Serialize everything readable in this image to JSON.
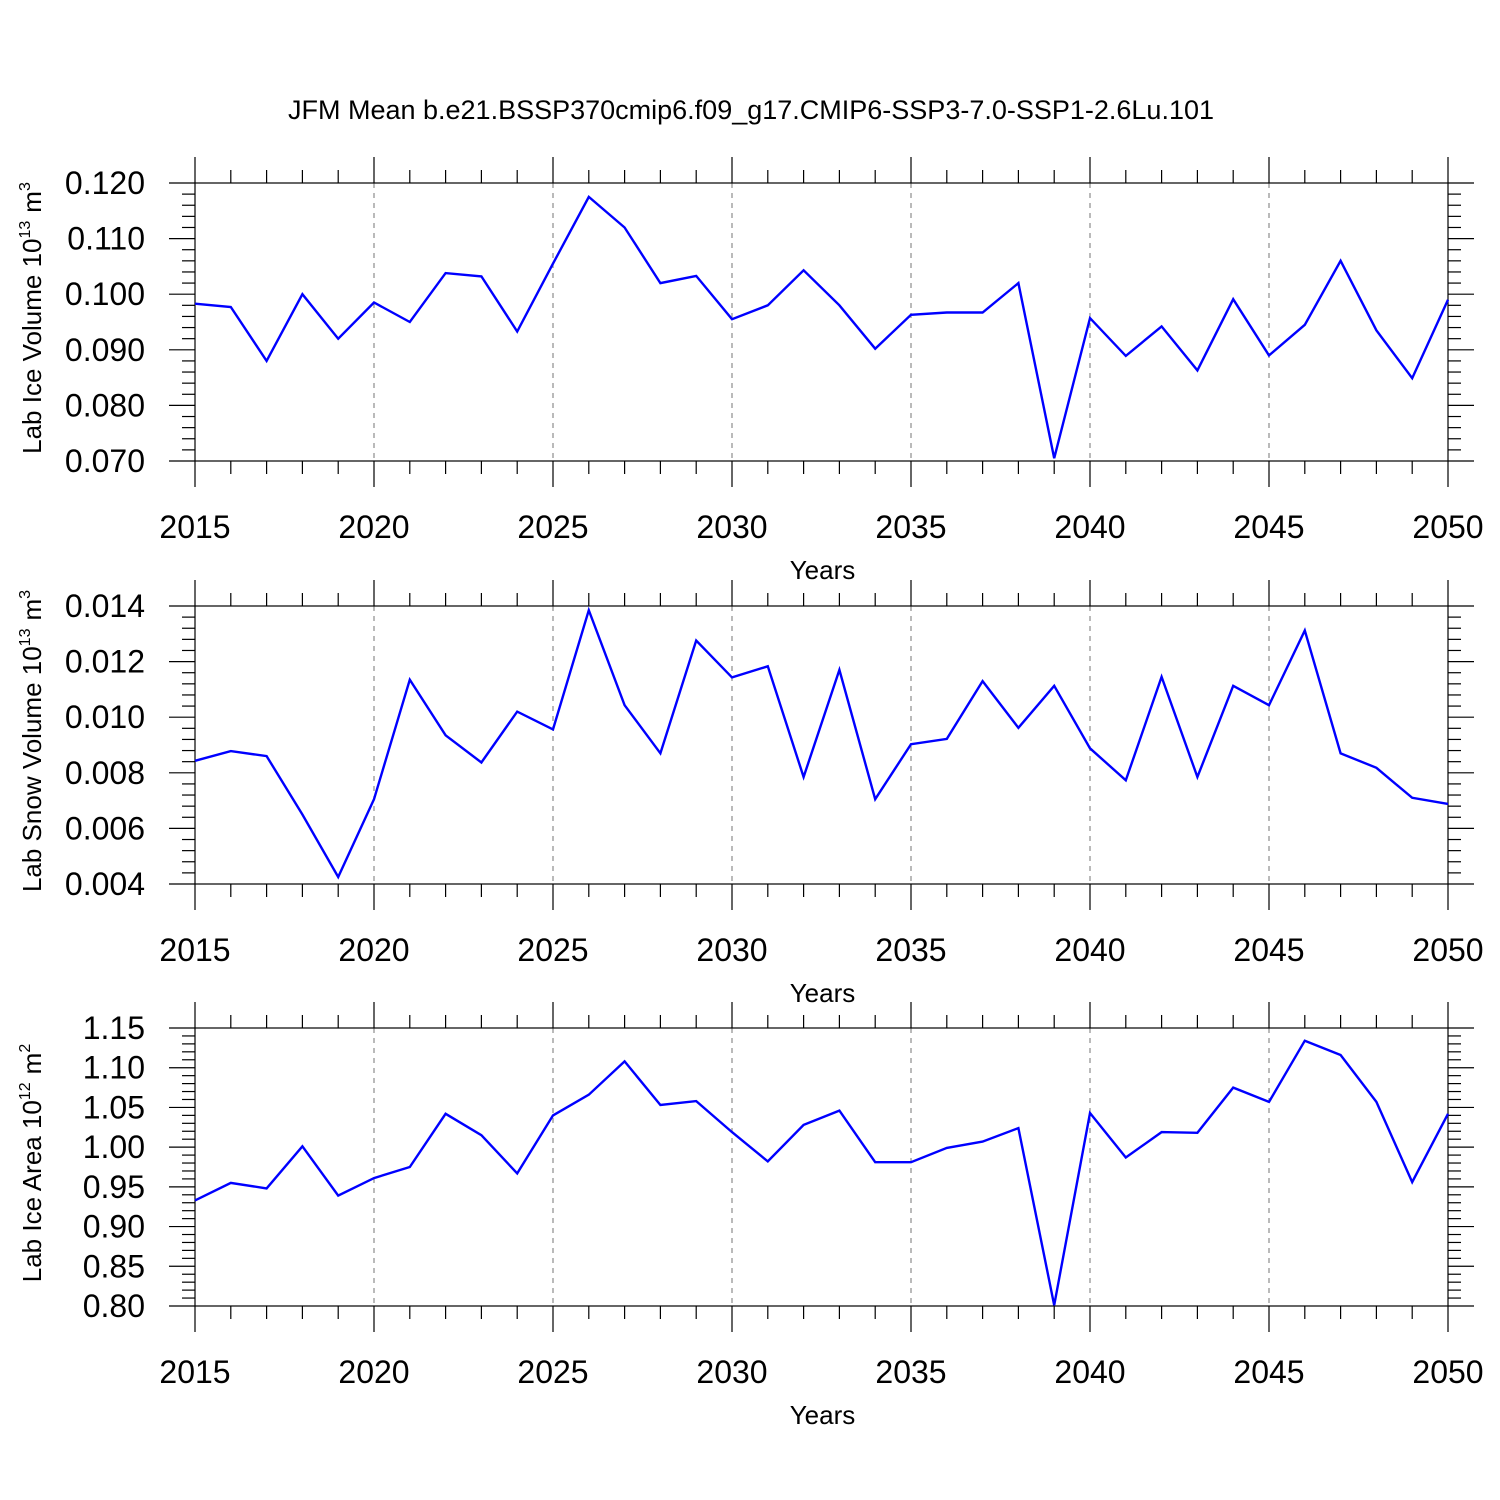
{
  "figure_title": "JFM Mean b.e21.BSSP370cmip6.f09_g17.CMIP6-SSP3-7.0-SSP1-2.6Lu.101",
  "chart_data": [
    {
      "type": "line",
      "ylabel_main": "Lab Ice Volume 10",
      "ylabel_exp": "13",
      "ylabel_unit": "m",
      "ylabel_unit_exp": "3",
      "xlabel": "Years",
      "xlim": [
        2015,
        2050
      ],
      "ylim": [
        0.07,
        0.12
      ],
      "yticks": [
        0.07,
        0.08,
        0.09,
        0.1,
        0.11,
        0.12
      ],
      "ytick_labels": [
        "0.070",
        "0.080",
        "0.090",
        "0.100",
        "0.110",
        "0.120"
      ],
      "xticks": [
        2015,
        2020,
        2025,
        2030,
        2035,
        2040,
        2045,
        2050
      ],
      "xtick_labels": [
        "2015",
        "2020",
        "2025",
        "2030",
        "2035",
        "2040",
        "2045",
        "2050"
      ],
      "grid": "vertical dashed at major x ticks",
      "color": "#0000ff",
      "x": [
        2015,
        2016,
        2017,
        2018,
        2019,
        2020,
        2021,
        2022,
        2023,
        2024,
        2025,
        2026,
        2027,
        2028,
        2029,
        2030,
        2031,
        2032,
        2033,
        2034,
        2035,
        2036,
        2037,
        2038,
        2039,
        2040,
        2041,
        2042,
        2043,
        2044,
        2045,
        2046,
        2047,
        2048,
        2049,
        2050
      ],
      "y": [
        0.0983,
        0.0977,
        0.088,
        0.1,
        0.092,
        0.0985,
        0.095,
        0.1038,
        0.1032,
        0.0933,
        0.1055,
        0.1175,
        0.112,
        0.102,
        0.1033,
        0.0955,
        0.098,
        0.1043,
        0.098,
        0.0902,
        0.0963,
        0.0967,
        0.0967,
        0.102,
        0.0705,
        0.0957,
        0.0889,
        0.0942,
        0.0863,
        0.0991,
        0.089,
        0.0945,
        0.106,
        0.0935,
        0.0849,
        0.099
      ]
    },
    {
      "type": "line",
      "ylabel_main": "Lab Snow Volume 10",
      "ylabel_exp": "13",
      "ylabel_unit": "m",
      "ylabel_unit_exp": "3",
      "xlabel": "Years",
      "xlim": [
        2015,
        2050
      ],
      "ylim": [
        0.004,
        0.014
      ],
      "yticks": [
        0.004,
        0.006,
        0.008,
        0.01,
        0.012,
        0.014
      ],
      "ytick_labels": [
        "0.004",
        "0.006",
        "0.008",
        "0.010",
        "0.012",
        "0.014"
      ],
      "xticks": [
        2015,
        2020,
        2025,
        2030,
        2035,
        2040,
        2045,
        2050
      ],
      "xtick_labels": [
        "2015",
        "2020",
        "2025",
        "2030",
        "2035",
        "2040",
        "2045",
        "2050"
      ],
      "grid": "vertical dashed at major x ticks",
      "color": "#0000ff",
      "x": [
        2015,
        2016,
        2017,
        2018,
        2019,
        2020,
        2021,
        2022,
        2023,
        2024,
        2025,
        2026,
        2027,
        2028,
        2029,
        2030,
        2031,
        2032,
        2033,
        2034,
        2035,
        2036,
        2037,
        2038,
        2039,
        2040,
        2041,
        2042,
        2043,
        2044,
        2045,
        2046,
        2047,
        2048,
        2049,
        2050
      ],
      "y": [
        0.00843,
        0.00878,
        0.0086,
        0.0065,
        0.00425,
        0.00705,
        0.01135,
        0.00935,
        0.00837,
        0.0102,
        0.00956,
        0.01385,
        0.01043,
        0.0087,
        0.01276,
        0.01143,
        0.01183,
        0.00785,
        0.0117,
        0.00705,
        0.00903,
        0.00922,
        0.0113,
        0.00962,
        0.01113,
        0.00888,
        0.00773,
        0.01145,
        0.00785,
        0.01113,
        0.01043,
        0.01312,
        0.0087,
        0.00818,
        0.0071,
        0.00688
      ]
    },
    {
      "type": "line",
      "ylabel_main": "Lab Ice Area 10",
      "ylabel_exp": "12",
      "ylabel_unit": "m",
      "ylabel_unit_exp": "2",
      "xlabel": "Years",
      "xlim": [
        2015,
        2050
      ],
      "ylim": [
        0.8,
        1.15
      ],
      "yticks": [
        0.8,
        0.85,
        0.9,
        0.95,
        1.0,
        1.05,
        1.1,
        1.15
      ],
      "ytick_labels": [
        "0.80",
        "0.85",
        "0.90",
        "0.95",
        "1.00",
        "1.05",
        "1.10",
        "1.15"
      ],
      "xticks": [
        2015,
        2020,
        2025,
        2030,
        2035,
        2040,
        2045,
        2050
      ],
      "xtick_labels": [
        "2015",
        "2020",
        "2025",
        "2030",
        "2035",
        "2040",
        "2045",
        "2050"
      ],
      "grid": "vertical dashed at major x ticks",
      "color": "#0000ff",
      "x": [
        2015,
        2016,
        2017,
        2018,
        2019,
        2020,
        2021,
        2022,
        2023,
        2024,
        2025,
        2026,
        2027,
        2028,
        2029,
        2030,
        2031,
        2032,
        2033,
        2034,
        2035,
        2036,
        2037,
        2038,
        2039,
        2040,
        2041,
        2042,
        2043,
        2044,
        2045,
        2046,
        2047,
        2048,
        2049,
        2050
      ],
      "y": [
        0.933,
        0.955,
        0.948,
        1.001,
        0.939,
        0.961,
        0.975,
        1.042,
        1.015,
        0.967,
        1.04,
        1.066,
        1.108,
        1.053,
        1.058,
        1.019,
        0.982,
        1.028,
        1.046,
        0.981,
        0.981,
        0.999,
        1.007,
        1.024,
        0.801,
        1.043,
        0.987,
        1.019,
        1.018,
        1.075,
        1.057,
        1.134,
        1.116,
        1.057,
        0.956,
        1.042
      ]
    }
  ]
}
